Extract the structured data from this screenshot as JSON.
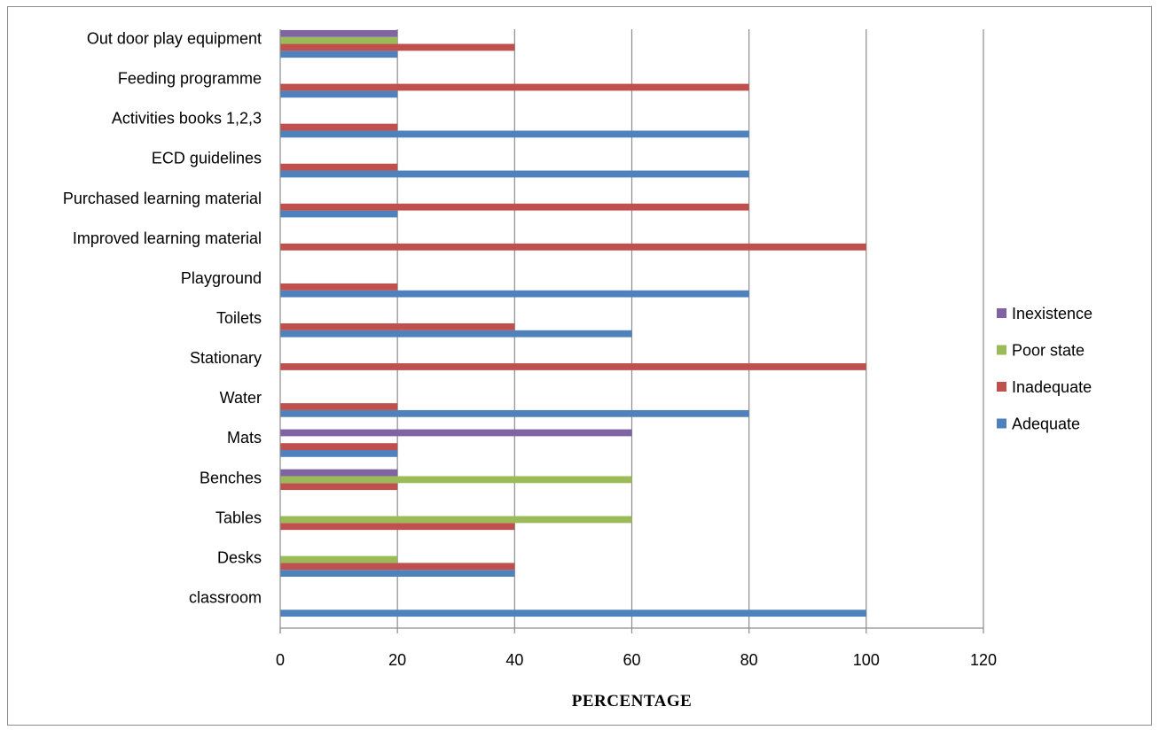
{
  "chart_data": {
    "type": "bar",
    "orientation": "horizontal",
    "title": "",
    "xlabel": "PERCENTAGE",
    "ylabel": "",
    "xlim": [
      0,
      120
    ],
    "xticks": [
      0,
      20,
      40,
      60,
      80,
      100,
      120
    ],
    "grid": "vertical",
    "legend_position": "right",
    "categories": [
      "classroom",
      "Desks",
      "Tables",
      "Benches",
      "Mats",
      "Water",
      "Stationary",
      "Toilets",
      "Playground",
      "Improved learning material",
      "Purchased learning material",
      "ECD guidelines",
      "Activities books 1,2,3",
      "Feeding programme",
      "Out door play equipment"
    ],
    "series": [
      {
        "name": "Adequate",
        "color": "#4f81bd",
        "values": [
          100,
          40,
          0,
          0,
          20,
          80,
          0,
          60,
          80,
          0,
          20,
          80,
          80,
          20,
          20
        ]
      },
      {
        "name": "Inadequate",
        "color": "#c0504d",
        "values": [
          0,
          40,
          40,
          20,
          20,
          20,
          100,
          40,
          20,
          100,
          80,
          20,
          20,
          80,
          40
        ]
      },
      {
        "name": "Poor state",
        "color": "#9bbb59",
        "values": [
          0,
          20,
          60,
          60,
          0,
          0,
          0,
          0,
          0,
          0,
          0,
          0,
          0,
          0,
          20
        ]
      },
      {
        "name": "Inexistence",
        "color": "#8064a2",
        "values": [
          0,
          0,
          0,
          20,
          60,
          0,
          0,
          0,
          0,
          0,
          0,
          0,
          0,
          0,
          20
        ]
      }
    ]
  }
}
